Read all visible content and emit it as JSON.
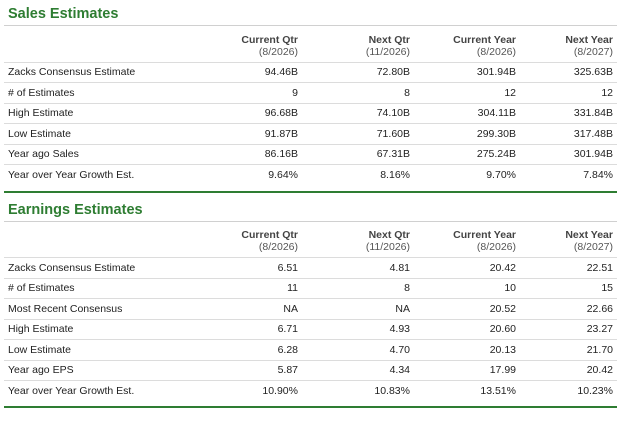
{
  "sales": {
    "title": "Sales Estimates",
    "headers": [
      {
        "l1": "Current Qtr",
        "l2": "(8/2026)"
      },
      {
        "l1": "Next Qtr",
        "l2": "(11/2026)"
      },
      {
        "l1": "Current Year",
        "l2": "(8/2026)"
      },
      {
        "l1": "Next Year",
        "l2": "(8/2027)"
      }
    ],
    "rows": [
      {
        "label": "Zacks Consensus Estimate",
        "values": [
          "94.46B",
          "72.80B",
          "301.94B",
          "325.63B"
        ]
      },
      {
        "label": "# of Estimates",
        "values": [
          "9",
          "8",
          "12",
          "12"
        ]
      },
      {
        "label": "High Estimate",
        "values": [
          "96.68B",
          "74.10B",
          "304.11B",
          "331.84B"
        ]
      },
      {
        "label": "Low Estimate",
        "values": [
          "91.87B",
          "71.60B",
          "299.30B",
          "317.48B"
        ]
      },
      {
        "label": "Year ago Sales",
        "values": [
          "86.16B",
          "67.31B",
          "275.24B",
          "301.94B"
        ]
      },
      {
        "label": "Year over Year Growth Est.",
        "values": [
          "9.64%",
          "8.16%",
          "9.70%",
          "7.84%"
        ]
      }
    ]
  },
  "earnings": {
    "title": "Earnings Estimates",
    "headers": [
      {
        "l1": "Current Qtr",
        "l2": "(8/2026)"
      },
      {
        "l1": "Next Qtr",
        "l2": "(11/2026)"
      },
      {
        "l1": "Current Year",
        "l2": "(8/2026)"
      },
      {
        "l1": "Next Year",
        "l2": "(8/2027)"
      }
    ],
    "rows": [
      {
        "label": "Zacks Consensus Estimate",
        "values": [
          "6.51",
          "4.81",
          "20.42",
          "22.51"
        ]
      },
      {
        "label": "# of Estimates",
        "values": [
          "11",
          "8",
          "10",
          "15"
        ]
      },
      {
        "label": "Most Recent Consensus",
        "values": [
          "NA",
          "NA",
          "20.52",
          "22.66"
        ]
      },
      {
        "label": "High Estimate",
        "values": [
          "6.71",
          "4.93",
          "20.60",
          "23.27"
        ]
      },
      {
        "label": "Low Estimate",
        "values": [
          "6.28",
          "4.70",
          "20.13",
          "21.70"
        ]
      },
      {
        "label": "Year ago EPS",
        "values": [
          "5.87",
          "4.34",
          "17.99",
          "20.42"
        ]
      },
      {
        "label": "Year over Year Growth Est.",
        "values": [
          "10.90%",
          "10.83%",
          "13.51%",
          "10.23%"
        ]
      }
    ]
  }
}
